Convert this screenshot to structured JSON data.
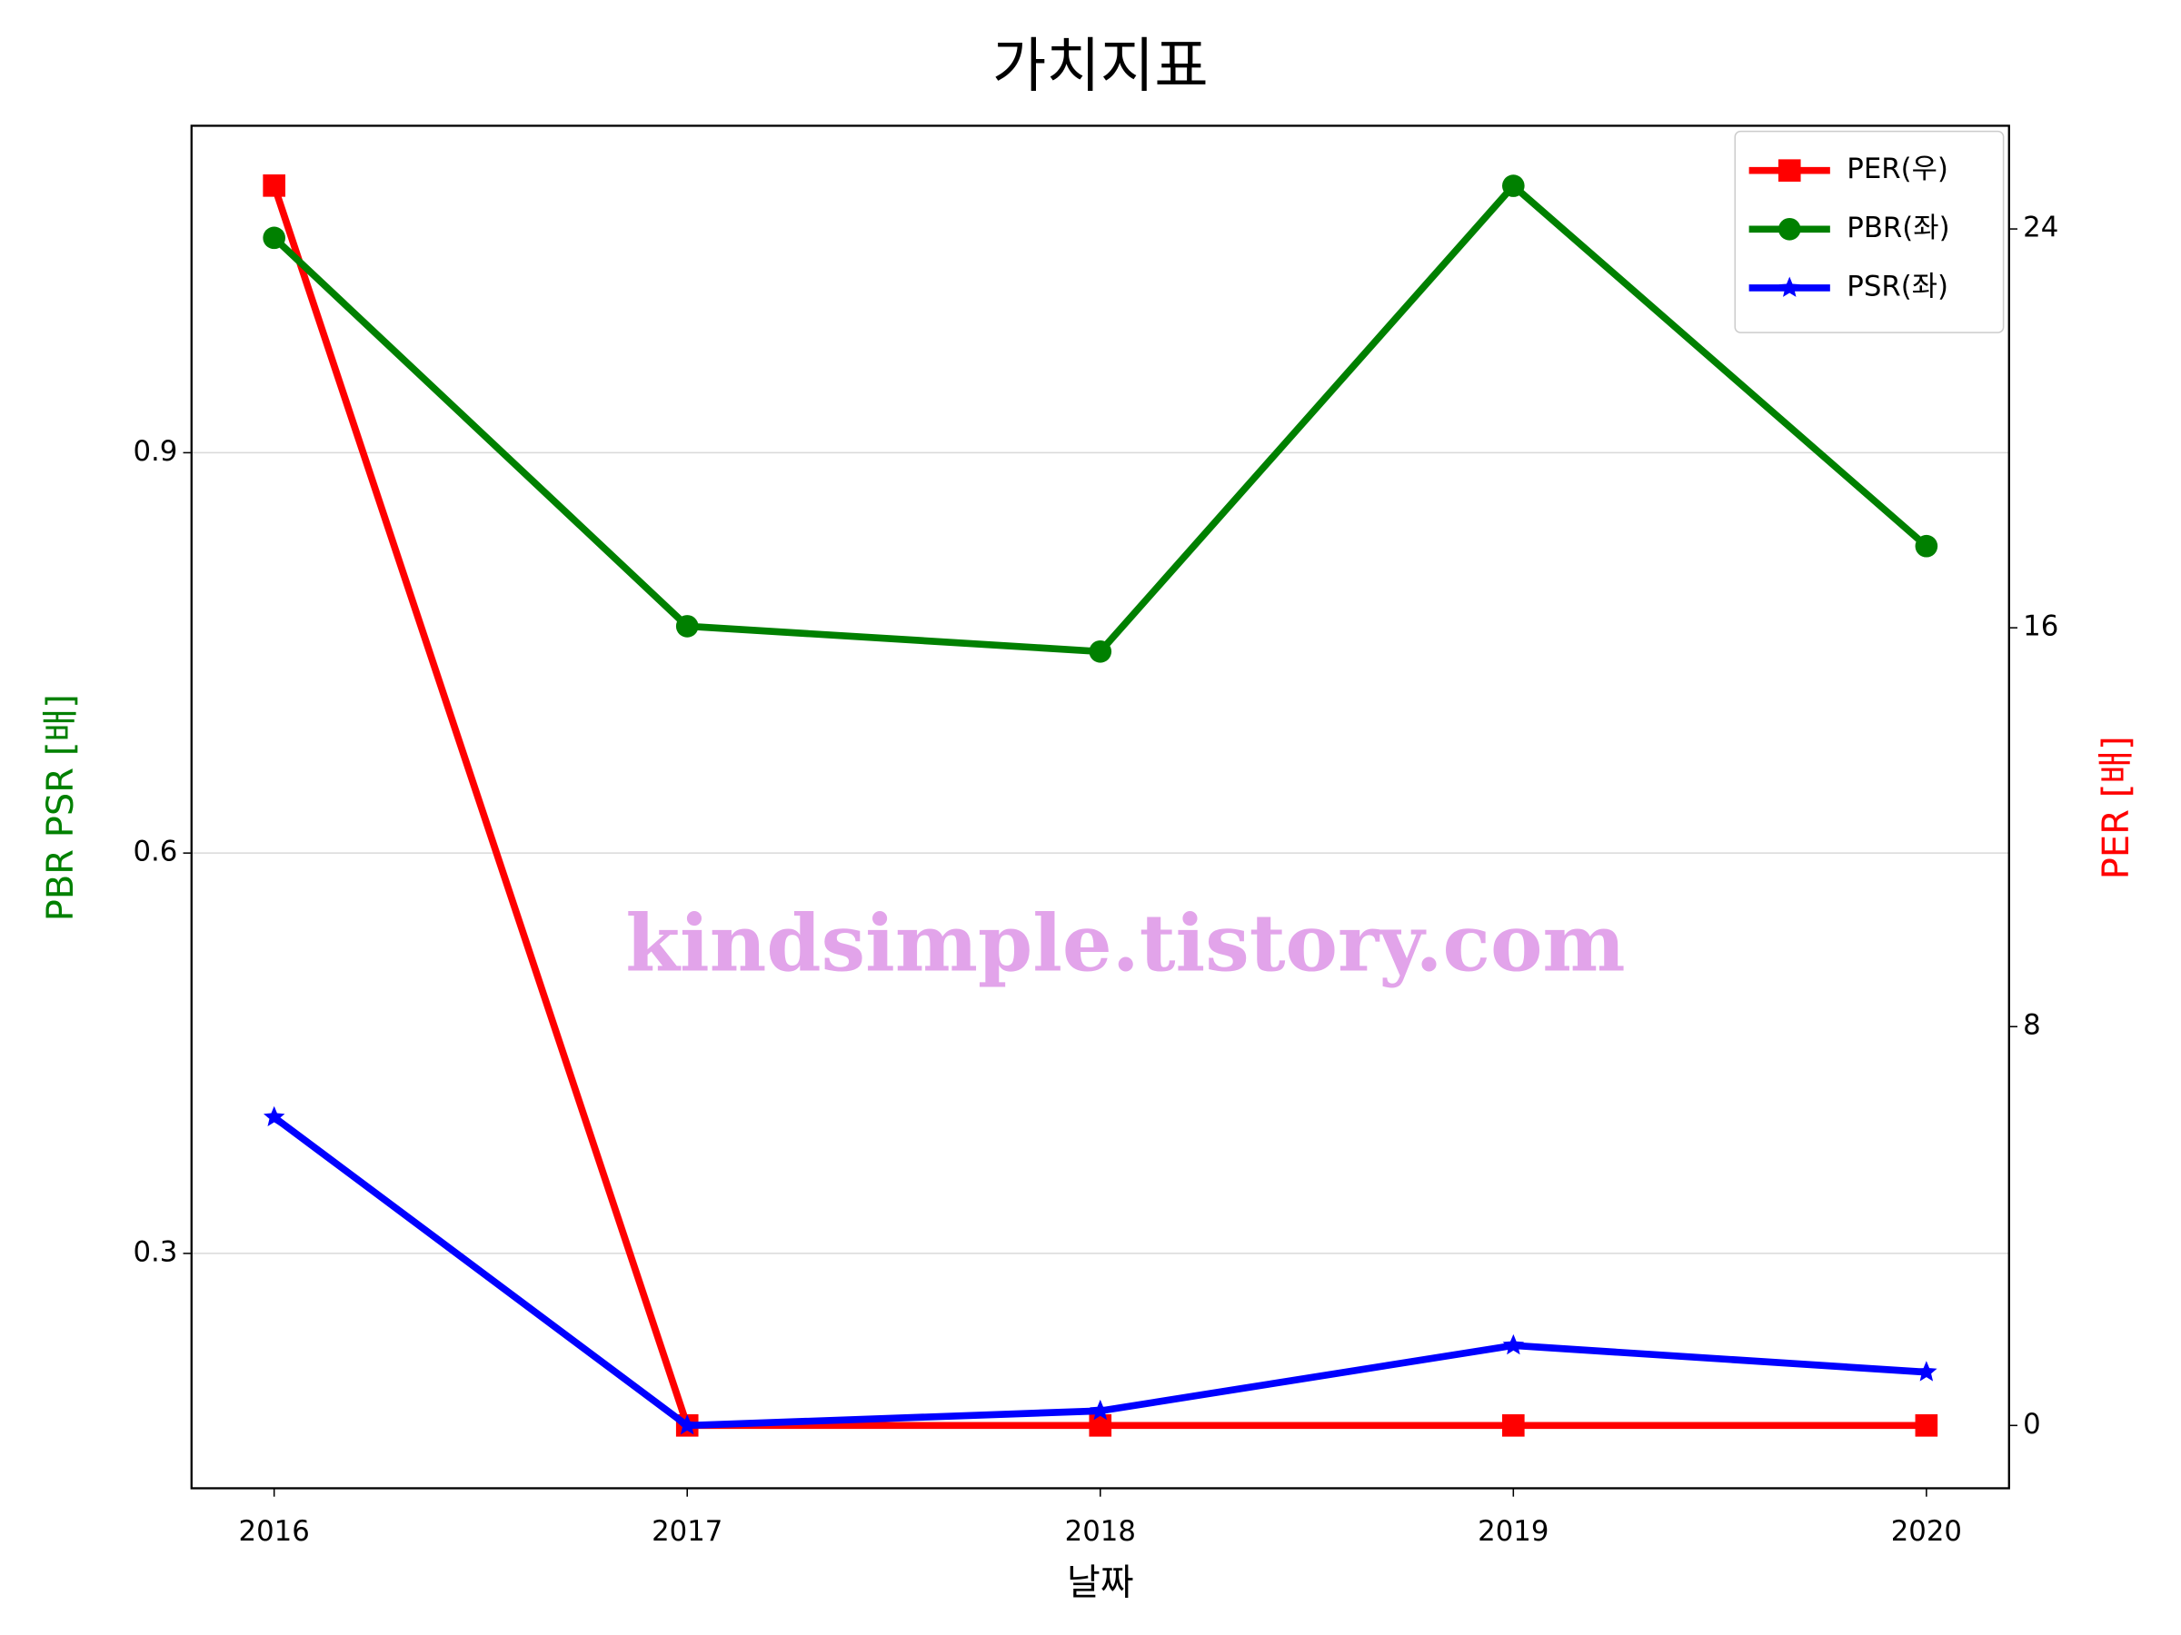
{
  "chart_data": {
    "type": "line",
    "title": "가치지표",
    "xlabel": "날짜",
    "ylabel": "PBR PSR [배]",
    "y2label": "PER [배]",
    "annotation": "kindsimple.tistory.com",
    "x": [
      2016,
      2017,
      2018,
      2019,
      2020
    ],
    "xlim": [
      2015.8,
      2020.2
    ],
    "xticks": [
      2016,
      2017,
      2018,
      2019,
      2020
    ],
    "ylim": [
      0.124,
      1.145
    ],
    "yticks": [
      0.3,
      0.6,
      0.9
    ],
    "y2lim": [
      -1.26,
      26.07
    ],
    "y2ticks": [
      0,
      8,
      16,
      24
    ],
    "grid": true,
    "legend": "upper right",
    "series": [
      {
        "name": "PER(우)",
        "color": "#ff0000",
        "marker": "square",
        "axis": "y2",
        "values": [
          24.87,
          0,
          0,
          0,
          0
        ]
      },
      {
        "name": "PBR(좌)",
        "color": "#008000",
        "marker": "circle",
        "values": [
          1.061,
          0.77,
          0.751,
          1.1,
          0.83
        ]
      },
      {
        "name": "PSR(좌)",
        "color": "#0000ff",
        "marker": "star",
        "values": [
          0.402,
          0.171,
          0.182,
          0.231,
          0.211
        ]
      }
    ]
  }
}
